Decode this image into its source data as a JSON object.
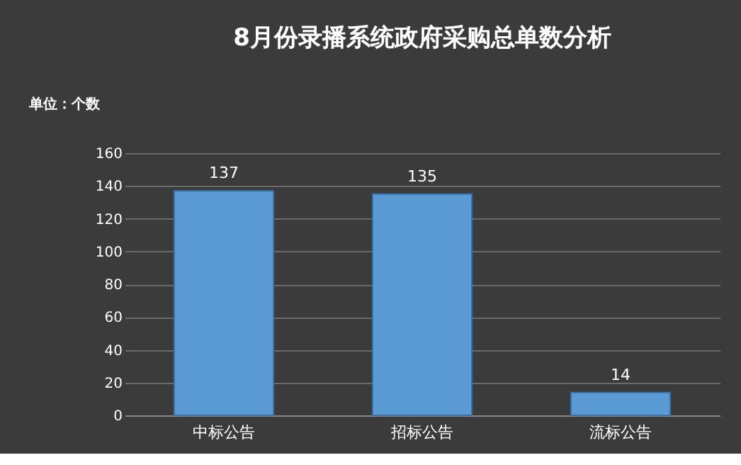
{
  "chart_data": {
    "type": "bar",
    "title": "8月份录播系统政府采购总单数分析",
    "ylabel": "单位：个数",
    "categories": [
      "中标公告",
      "招标公告",
      "流标公告"
    ],
    "series": [
      {
        "color": "#5b9bd5",
        "values": [
          137,
          135,
          14
        ]
      }
    ],
    "ylim": [
      0,
      160
    ],
    "yticks": [
      0,
      20,
      40,
      60,
      80,
      100,
      120,
      140,
      160
    ],
    "grid": "y",
    "data_labels": true,
    "legend": false
  }
}
